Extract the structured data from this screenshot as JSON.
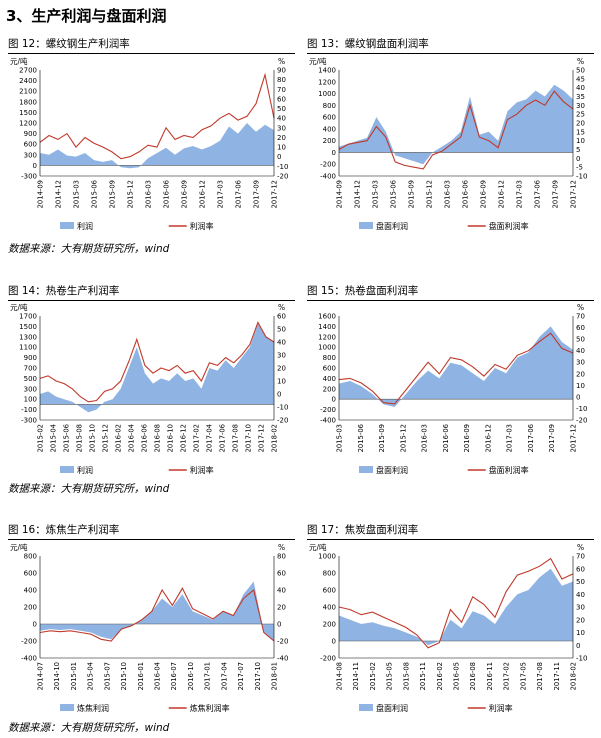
{
  "page": {
    "section_title": "3、生产利润与盘面利润"
  },
  "source_note": "数据来源：大有期货研究所，wind",
  "figures": [
    {
      "fig_title": "图 12：螺纹钢生产利润率",
      "legend": [
        "利润",
        "利润率"
      ],
      "chart_data": {
        "type": "area",
        "ylabel": "元/吨",
        "y2label": "%",
        "ylim": [
          -300,
          2700
        ],
        "ytick_step": 300,
        "y2lim": [
          -20,
          90
        ],
        "y2tick_step": 10,
        "xticks": [
          "2014-09",
          "2014-12",
          "2015-03",
          "2015-06",
          "2015-09",
          "2015-12",
          "2016-03",
          "2016-06",
          "2016-09",
          "2016-12",
          "2017-03",
          "2017-06",
          "2017-09",
          "2017-12"
        ],
        "series": [
          {
            "name": "利润",
            "type": "area",
            "axis": "left",
            "values": [
              350,
              300,
              450,
              280,
              250,
              350,
              150,
              100,
              150,
              -50,
              -80,
              -50,
              200,
              350,
              500,
              300,
              480,
              550,
              450,
              550,
              700,
              1100,
              900,
              1200,
              950,
              1150,
              1000
            ]
          },
          {
            "name": "利润率",
            "type": "line",
            "axis": "right",
            "values": [
              15,
              22,
              18,
              24,
              10,
              20,
              14,
              10,
              5,
              -2,
              0,
              5,
              12,
              10,
              30,
              18,
              22,
              20,
              28,
              32,
              40,
              45,
              38,
              42,
              55,
              85,
              40
            ]
          }
        ]
      }
    },
    {
      "fig_title": "图 13：螺纹钢盘面利润率",
      "legend": [
        "盘面利润",
        "盘面利润率"
      ],
      "chart_data": {
        "type": "area",
        "ylabel": "元/吨",
        "y2label": "%",
        "ylim": [
          -400,
          1400
        ],
        "ytick_step": 200,
        "y2lim": [
          -10,
          50
        ],
        "y2tick_step": 5,
        "xticks": [
          "2014-09",
          "2014-12",
          "2015-03",
          "2015-06",
          "2015-09",
          "2015-12",
          "2016-03",
          "2016-06",
          "2016-09",
          "2016-12",
          "2017-03",
          "2017-06",
          "2017-09",
          "2017-12"
        ],
        "series": [
          {
            "name": "盘面利润",
            "type": "area",
            "axis": "left",
            "values": [
              100,
              150,
              200,
              250,
              600,
              350,
              -50,
              -100,
              -150,
              -200,
              0,
              100,
              200,
              350,
              950,
              300,
              350,
              200,
              700,
              850,
              900,
              1050,
              950,
              1150,
              1050,
              900
            ]
          },
          {
            "name": "盘面利润率",
            "type": "line",
            "axis": "right",
            "values": [
              5,
              8,
              9,
              10,
              18,
              12,
              -2,
              -4,
              -5,
              -6,
              2,
              4,
              8,
              12,
              30,
              12,
              10,
              6,
              22,
              25,
              30,
              33,
              30,
              38,
              32,
              28
            ]
          }
        ]
      }
    },
    {
      "fig_title": "图 14：热卷生产利润率",
      "legend": [
        "利润",
        "利润率"
      ],
      "chart_data": {
        "type": "area",
        "ylabel": "元/吨",
        "y2label": "%",
        "ylim": [
          -300,
          1700
        ],
        "ytick_step": 200,
        "y2lim": [
          -20,
          60
        ],
        "y2tick_step": 10,
        "xticks": [
          "2015-02",
          "2015-04",
          "2015-06",
          "2015-08",
          "2015-10",
          "2015-12",
          "2016-02",
          "2016-04",
          "2016-06",
          "2016-08",
          "2016-10",
          "2016-12",
          "2017-02",
          "2017-04",
          "2017-06",
          "2017-08",
          "2017-10",
          "2017-12",
          "2018-02"
        ],
        "series": [
          {
            "name": "利润",
            "type": "area",
            "axis": "left",
            "values": [
              200,
              250,
              150,
              100,
              50,
              -50,
              -150,
              -100,
              50,
              100,
              300,
              700,
              1100,
              600,
              400,
              500,
              450,
              600,
              450,
              500,
              300,
              700,
              650,
              850,
              700,
              900,
              1100,
              1550,
              1300,
              1200
            ]
          },
          {
            "name": "利润率",
            "type": "line",
            "axis": "right",
            "values": [
              12,
              14,
              10,
              8,
              4,
              -2,
              -6,
              -5,
              2,
              4,
              10,
              25,
              42,
              22,
              16,
              20,
              18,
              22,
              16,
              18,
              10,
              24,
              22,
              28,
              24,
              30,
              38,
              55,
              44,
              40
            ]
          }
        ]
      }
    },
    {
      "fig_title": "图 15：热卷盘面利润率",
      "legend": [
        "盘面利润",
        "盘面利润率"
      ],
      "chart_data": {
        "type": "area",
        "ylabel": "",
        "y2label": "%",
        "ylim": [
          -400,
          1600
        ],
        "ytick_step": 200,
        "y2lim": [
          -20,
          70
        ],
        "y2tick_step": 10,
        "xticks": [
          "2015-03",
          "2015-06",
          "2015-09",
          "2015-12",
          "2016-03",
          "2016-06",
          "2016-09",
          "2016-12",
          "2017-03",
          "2017-06",
          "2017-09",
          "2017-12"
        ],
        "series": [
          {
            "name": "盘面利润",
            "type": "area",
            "axis": "left",
            "values": [
              300,
              350,
              250,
              100,
              -100,
              -150,
              100,
              350,
              550,
              400,
              700,
              650,
              500,
              350,
              600,
              500,
              800,
              900,
              1200,
              1400,
              1100,
              950
            ]
          },
          {
            "name": "盘面利润率",
            "type": "line",
            "axis": "right",
            "values": [
              15,
              16,
              12,
              5,
              -5,
              -6,
              6,
              18,
              30,
              20,
              34,
              32,
              26,
              18,
              28,
              24,
              36,
              40,
              48,
              55,
              42,
              38
            ]
          }
        ]
      }
    },
    {
      "fig_title": "图 16：炼焦生产利润率",
      "legend": [
        "炼焦利润",
        "炼焦利润率"
      ],
      "chart_data": {
        "type": "area",
        "ylabel": "元/吨",
        "y2label": "%",
        "ylim": [
          -400,
          800
        ],
        "ytick_step": 200,
        "y2lim": [
          -40,
          80
        ],
        "y2tick_step": 20,
        "xticks": [
          "2014-07",
          "2014-10",
          "2015-01",
          "2015-04",
          "2015-07",
          "2015-10",
          "2016-01",
          "2016-04",
          "2016-07",
          "2016-10",
          "2017-01",
          "2017-04",
          "2017-07",
          "2017-10",
          "2018-01"
        ],
        "series": [
          {
            "name": "炼焦利润",
            "type": "area",
            "axis": "left",
            "values": [
              -80,
              -60,
              -70,
              -60,
              -80,
              -100,
              -150,
              -180,
              -60,
              -20,
              50,
              150,
              300,
              200,
              350,
              150,
              100,
              50,
              150,
              100,
              350,
              500,
              -100,
              -200
            ]
          },
          {
            "name": "炼焦利润率",
            "type": "line",
            "axis": "right",
            "values": [
              -10,
              -8,
              -9,
              -8,
              -10,
              -12,
              -18,
              -20,
              -6,
              -2,
              5,
              15,
              40,
              22,
              42,
              18,
              12,
              6,
              15,
              10,
              30,
              40,
              -10,
              -20
            ]
          }
        ]
      }
    },
    {
      "fig_title": "图 17：焦炭盘面利润率",
      "legend": [
        "盘面利润",
        "利润率"
      ],
      "chart_data": {
        "type": "area",
        "ylabel": "元/吨",
        "y2label": "%",
        "ylim": [
          -200,
          1000
        ],
        "ytick_step": 200,
        "y2lim": [
          -10,
          70
        ],
        "y2tick_step": 10,
        "xticks": [
          "2014-08",
          "2014-11",
          "2015-02",
          "2015-05",
          "2015-08",
          "2015-11",
          "2016-02",
          "2016-05",
          "2016-08",
          "2016-11",
          "2017-02",
          "2017-05",
          "2017-08",
          "2017-11",
          "2018-02"
        ],
        "series": [
          {
            "name": "盘面利润",
            "type": "area",
            "axis": "left",
            "values": [
              300,
              250,
              200,
              220,
              180,
              150,
              100,
              50,
              -50,
              0,
              250,
              150,
              350,
              300,
              200,
              400,
              550,
              600,
              750,
              850,
              650,
              700
            ]
          },
          {
            "name": "利润率",
            "type": "line",
            "axis": "right",
            "values": [
              30,
              28,
              24,
              26,
              22,
              18,
              14,
              8,
              -2,
              2,
              28,
              18,
              38,
              32,
              22,
              42,
              55,
              58,
              62,
              68,
              52,
              56
            ]
          }
        ]
      }
    }
  ]
}
